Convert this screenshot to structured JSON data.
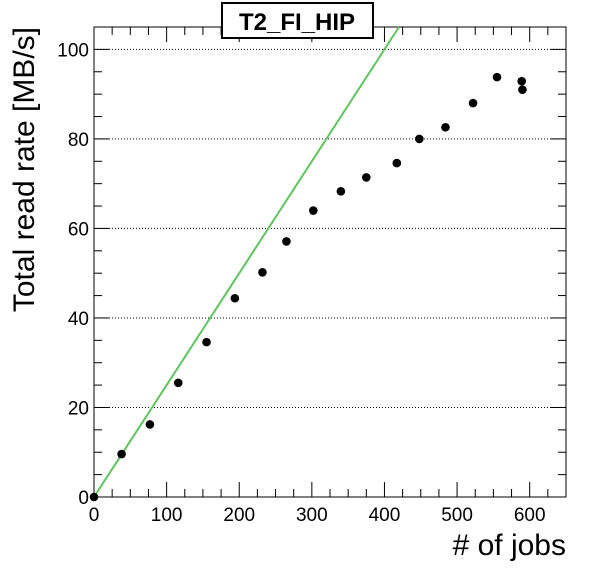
{
  "chart_data": {
    "type": "scatter",
    "title": "T2_FI_HIP",
    "xlabel": "# of jobs",
    "ylabel": "Total read rate [MB/s]",
    "xlim": [
      0,
      650
    ],
    "ylim": [
      0,
      105
    ],
    "x_ticks": [
      0,
      100,
      200,
      300,
      400,
      500,
      600
    ],
    "y_ticks": [
      0,
      20,
      40,
      60,
      80,
      100
    ],
    "grid": "horizontal dotted",
    "series": [
      {
        "marker": "circle",
        "color": "#000000",
        "points": [
          {
            "x": 0,
            "y": 0
          },
          {
            "x": 38,
            "y": 9.6
          },
          {
            "x": 77,
            "y": 16.2
          },
          {
            "x": 116,
            "y": 25.5
          },
          {
            "x": 155,
            "y": 34.6
          },
          {
            "x": 194,
            "y": 44.4
          },
          {
            "x": 232,
            "y": 50.2
          },
          {
            "x": 265,
            "y": 57.1
          },
          {
            "x": 302,
            "y": 64.0
          },
          {
            "x": 340,
            "y": 68.3
          },
          {
            "x": 375,
            "y": 71.4
          },
          {
            "x": 417,
            "y": 74.6
          },
          {
            "x": 448,
            "y": 80.0
          },
          {
            "x": 484,
            "y": 82.6
          },
          {
            "x": 522,
            "y": 88.0
          },
          {
            "x": 555,
            "y": 93.8
          },
          {
            "x": 589,
            "y": 92.9
          },
          {
            "x": 590,
            "y": 91.0
          }
        ]
      }
    ],
    "reference_line": {
      "color": "#5ec45e",
      "from": {
        "x": 0,
        "y": 0
      },
      "to": {
        "x": 420,
        "y": 105
      }
    }
  }
}
